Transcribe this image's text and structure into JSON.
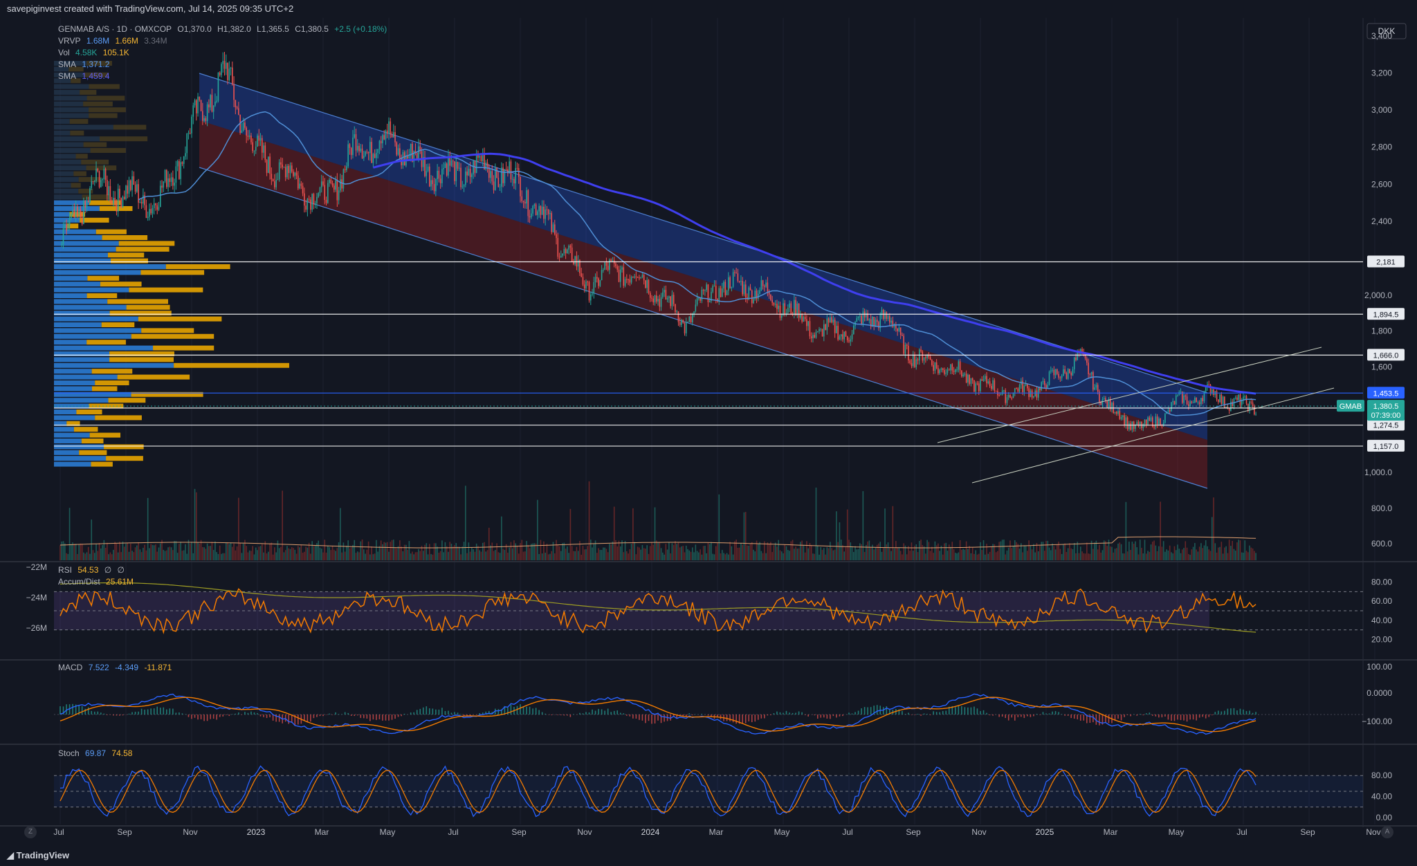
{
  "header": {
    "caption": "savepiginvest created with TradingView.com, Jul 14, 2025 09:35 UTC+2"
  },
  "footer": {
    "logo_text": "TradingView",
    "left_button": "Z",
    "right_button": "A"
  },
  "legend": {
    "symbol": "GENMAB A/S · 1D · OMXCOP",
    "open": "O1,370.0",
    "high": "H1,382.0",
    "low": "L1,365.5",
    "close": "C1,380.5",
    "change": "+2.5 (+0.18%)",
    "vrvp_label": "VRVP",
    "vrvp_v1": "1.68M",
    "vrvp_v2": "1.66M",
    "vrvp_v3": "3.34M",
    "vol_label": "Vol",
    "vol_v1": "4.58K",
    "vol_v2": "105.1K",
    "sma1_label": "SMA",
    "sma1_value": "1,371.2",
    "sma2_label": "SMA",
    "sma2_value": "1,459.4"
  },
  "rsi_legend": {
    "label": "RSI",
    "value": "54.53",
    "extra1": "∅",
    "extra2": "∅",
    "ad_label": "Accum/Dist",
    "ad_value": "25.61M"
  },
  "macd_legend": {
    "label": "MACD",
    "v1": "7.522",
    "v2": "-4.349",
    "v3": "-11.871"
  },
  "stoch_legend": {
    "label": "Stoch",
    "v1": "69.87",
    "v2": "74.58"
  },
  "currency": "DKK",
  "price_axis": [
    "3,400",
    "3,200",
    "3,000",
    "2,800",
    "2,600",
    "2,400",
    "2,000.0",
    "1,800",
    "1,600",
    "1,000.0",
    "800.0",
    "600.0"
  ],
  "rsi_axis": [
    "80.00",
    "60.00",
    "40.00",
    "20.00"
  ],
  "ad_axis": [
    "−22M",
    "−24M",
    "−26M"
  ],
  "macd_axis": [
    "100.00",
    "0.0000",
    "−100.00"
  ],
  "stoch_axis": [
    "80.00",
    "40.00",
    "0.00"
  ],
  "time_axis": [
    "Jul",
    "Sep",
    "Nov",
    "2023",
    "Mar",
    "May",
    "Jul",
    "Sep",
    "Nov",
    "2024",
    "Mar",
    "May",
    "Jul",
    "Sep",
    "Nov",
    "2025",
    "Mar",
    "May",
    "Jul",
    "Sep",
    "Nov"
  ],
  "level_labels": [
    "2,181",
    "1,894.5",
    "1,666.0",
    "1,453.5",
    "1,370.0",
    "1,274.5",
    "1,157.0"
  ],
  "last_price": {
    "ticker": "GMAB",
    "price": "1,380.5",
    "countdown": "07:39:00"
  },
  "colors": {
    "background": "#131722",
    "up": "#26a69a",
    "down": "#ef5350",
    "sma_fast": "#4f8fd6",
    "sma_slow": "#3f3ff0",
    "channel_upper": "#2962ff",
    "channel_lower": "#b22222",
    "rsi": "#f57c00",
    "ad": "#9e9d24",
    "profile_up": "#2b7bd3",
    "profile_down": "#e8a400"
  },
  "chart_data": {
    "type": "candlestick",
    "title": "GENMAB A/S · 1D · OMXCOP",
    "x_range": [
      "2022-07",
      "2025-11"
    ],
    "y_range_dkk": [
      550,
      3450
    ],
    "close_series": {
      "dates": [
        "2022-07",
        "2022-08",
        "2022-09",
        "2022-10",
        "2022-11",
        "2022-12",
        "2023-01",
        "2023-02",
        "2023-03",
        "2023-04",
        "2023-05",
        "2023-06",
        "2023-07",
        "2023-08",
        "2023-09",
        "2023-10",
        "2023-11",
        "2023-12",
        "2024-01",
        "2024-02",
        "2024-03",
        "2024-04",
        "2024-05",
        "2024-06",
        "2024-07",
        "2024-08",
        "2024-09",
        "2024-10",
        "2024-11",
        "2024-12",
        "2025-01",
        "2025-02",
        "2025-03",
        "2025-04",
        "2025-05",
        "2025-06",
        "2025-07"
      ],
      "values": [
        2250,
        2600,
        2550,
        2500,
        2900,
        3200,
        2750,
        2650,
        2500,
        2800,
        2850,
        2700,
        2650,
        2700,
        2600,
        2350,
        2050,
        2150,
        2050,
        1850,
        2050,
        2050,
        1950,
        1800,
        1800,
        1900,
        1650,
        1600,
        1500,
        1450,
        1500,
        1650,
        1350,
        1250,
        1400,
        1453,
        1380.5
      ]
    },
    "horizontal_levels": [
      2181,
      1894.5,
      1666.0,
      1453.5,
      1370.0,
      1274.5,
      1157.0
    ],
    "rsi_levels": [
      70,
      50,
      30
    ],
    "stoch_levels": [
      80,
      50,
      20
    ]
  }
}
